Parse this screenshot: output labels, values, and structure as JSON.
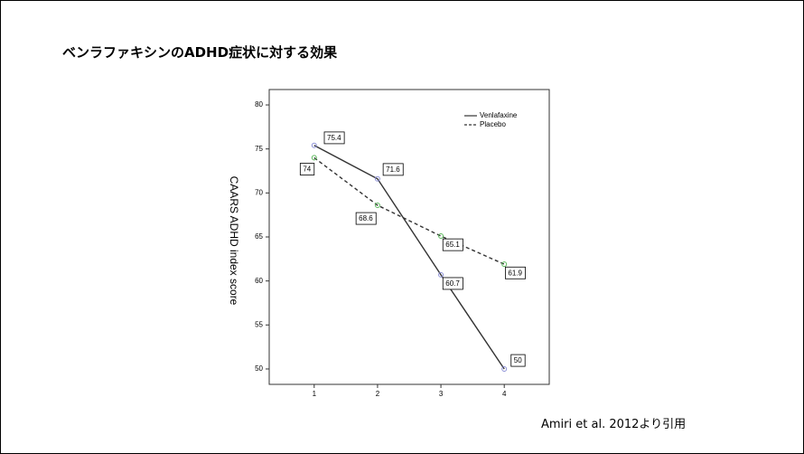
{
  "slide": {
    "title": "ベンラファキシンのADHD症状に対する効果",
    "citation": "Amiri et al. 2012より引用"
  },
  "chart_data": {
    "type": "line",
    "y_label": "CAARS ADHD index score",
    "x": [
      1,
      2,
      3,
      4
    ],
    "xlim": [
      0.29,
      4.71
    ],
    "xticks": [
      1,
      2,
      3,
      4
    ],
    "ylim": [
      48.25,
      81.75
    ],
    "yticks": [
      50,
      55,
      60,
      65,
      70,
      75,
      80
    ],
    "legend": "top-right",
    "series": [
      {
        "name": "Venlafaxine",
        "color": "#333333",
        "marker_color": "#8c90d6",
        "dash": false,
        "values": [
          75.4,
          71.6,
          60.7,
          50
        ]
      },
      {
        "name": "Placebo",
        "color": "#333333",
        "marker_color": "#5cb85c",
        "dash": true,
        "values": [
          74,
          68.6,
          65.1,
          61.9
        ]
      }
    ]
  }
}
